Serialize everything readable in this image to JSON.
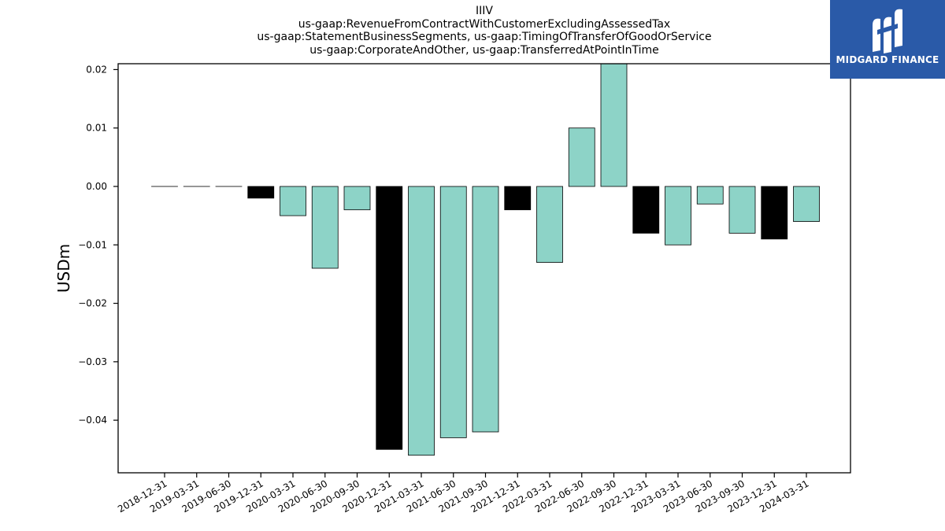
{
  "title_lines": [
    "IIIV",
    "us-gaap:RevenueFromContractWithCustomerExcludingAssessedTax",
    "us-gaap:StatementBusinessSegments, us-gaap:TimingOfTransferOfGoodOrService",
    "us-gaap:CorporateAndOther, us-gaap:TransferredAtPointInTime"
  ],
  "logo": {
    "text": "MIDGARD FINANCE",
    "background": "#2a5aa8"
  },
  "chart_data": {
    "type": "bar",
    "title": "IIIV us-gaap:RevenueFromContractWithCustomerExcludingAssessedTax us-gaap:StatementBusinessSegments, us-gaap:TimingOfTransferOfGoodOrService us-gaap:CorporateAndOther, us-gaap:TransferredAtPointInTime",
    "xlabel": "",
    "ylabel": "USDm",
    "ylim": [
      -0.049,
      0.021
    ],
    "yticks": [
      0.02,
      0.01,
      0.0,
      -0.01,
      -0.02,
      -0.03,
      -0.04
    ],
    "ytick_labels": [
      "0.02",
      "0.01",
      "0.00",
      "−0.01",
      "−0.02",
      "−0.03",
      "−0.04"
    ],
    "categories": [
      "2018-12-31",
      "2019-03-31",
      "2019-06-30",
      "2019-12-31",
      "2020-03-31",
      "2020-06-30",
      "2020-09-30",
      "2020-12-31",
      "2021-03-31",
      "2021-06-30",
      "2021-09-30",
      "2021-12-31",
      "2022-03-31",
      "2022-06-30",
      "2022-09-30",
      "2022-12-31",
      "2023-03-31",
      "2023-06-30",
      "2023-09-30",
      "2023-12-31",
      "2024-03-31"
    ],
    "values": [
      0.0,
      0.0,
      0.0,
      -0.002,
      -0.005,
      -0.014,
      -0.004,
      -0.045,
      -0.046,
      -0.043,
      -0.042,
      -0.004,
      -0.013,
      0.01,
      0.021,
      -0.008,
      -0.01,
      -0.003,
      -0.008,
      -0.009,
      -0.006
    ],
    "bar_colors": [
      "#000000",
      "#000000",
      "#000000",
      "#000000",
      "#8dd3c7",
      "#8dd3c7",
      "#8dd3c7",
      "#000000",
      "#8dd3c7",
      "#8dd3c7",
      "#8dd3c7",
      "#000000",
      "#8dd3c7",
      "#8dd3c7",
      "#8dd3c7",
      "#000000",
      "#8dd3c7",
      "#8dd3c7",
      "#8dd3c7",
      "#000000",
      "#8dd3c7"
    ],
    "colors": {
      "quarter": "#8dd3c7",
      "year_end": "#000000",
      "edge": "#000000"
    },
    "grid": false,
    "legend": "none"
  }
}
